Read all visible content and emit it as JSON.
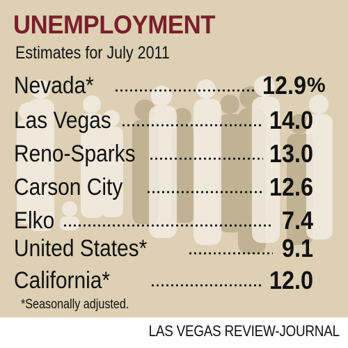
{
  "header": {
    "title": "UNEMPLOYMENT",
    "subtitle": "Estimates for July 2011"
  },
  "rows": [
    {
      "label": "Nevada*",
      "value": "12.9"
    },
    {
      "label": "Las Vegas",
      "value": "14.0"
    },
    {
      "label": "Reno-Sparks",
      "value": "13.0"
    },
    {
      "label": "Carson City",
      "value": "12.6"
    },
    {
      "label": "Elko",
      "value": "7.4"
    },
    {
      "label": "United States*",
      "value": "9.1"
    },
    {
      "label": "California*",
      "value": "12.0"
    }
  ],
  "unit": "%",
  "footnote": "*Seasonally adjusted.",
  "credit": "LAS VEGAS REVIEW-JOURNAL",
  "colors": {
    "background": "#ddd0b4",
    "title": "#7a1f2c",
    "silhouette_light": "#f3ede2",
    "silhouette_dark": "#b8a888"
  }
}
